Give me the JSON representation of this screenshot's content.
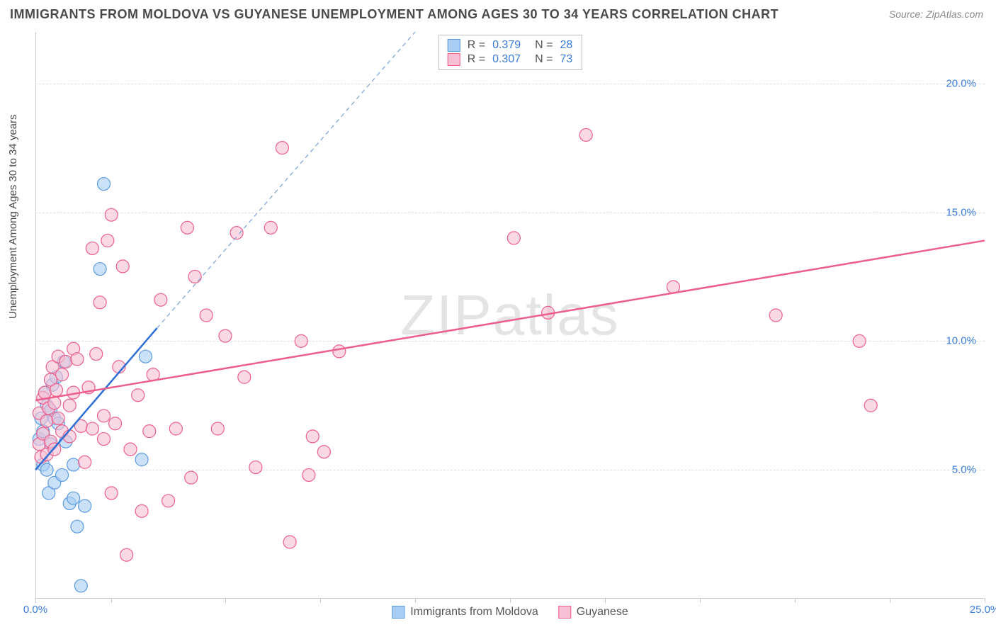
{
  "title": "IMMIGRANTS FROM MOLDOVA VS GUYANESE UNEMPLOYMENT AMONG AGES 30 TO 34 YEARS CORRELATION CHART",
  "source": "Source: ZipAtlas.com",
  "ylabel": "Unemployment Among Ages 30 to 34 years",
  "watermark": "ZIPatlas",
  "chart": {
    "type": "scatter",
    "background_color": "#ffffff",
    "grid_color": "#dcdcdc",
    "axis_color": "#cccccc",
    "tick_label_color": "#3b7dd8",
    "xlim": [
      0,
      25
    ],
    "ylim": [
      0,
      22
    ],
    "xticks": [
      0,
      2,
      5,
      7.5,
      10,
      12.5,
      15,
      17.5,
      20,
      22.5,
      25
    ],
    "xtick_labels": {
      "0": "0.0%",
      "25": "25.0%"
    },
    "yticks": [
      5,
      10,
      15,
      20
    ],
    "ytick_labels": {
      "5": "5.0%",
      "10": "10.0%",
      "15": "15.0%",
      "20": "20.0%"
    },
    "marker_radius": 9,
    "marker_stroke_width": 1.2,
    "marker_fill_opacity": 0.25,
    "trend_line_width": 2.5,
    "series": [
      {
        "id": "moldova",
        "label": "Immigrants from Moldova",
        "color_stroke": "#5a9be0",
        "color_fill": "#a9cdf3",
        "R": "0.379",
        "N": "28",
        "trend": {
          "x1": 0,
          "y1": 5.0,
          "x2": 3.2,
          "y2": 10.5,
          "dash_ext_x2": 10.0,
          "dash_ext_y2": 22.0
        },
        "points": [
          [
            0.1,
            6.2
          ],
          [
            0.15,
            7.0
          ],
          [
            0.2,
            5.2
          ],
          [
            0.2,
            6.5
          ],
          [
            0.25,
            8.0
          ],
          [
            0.3,
            7.5
          ],
          [
            0.3,
            5.0
          ],
          [
            0.35,
            4.1
          ],
          [
            0.4,
            7.3
          ],
          [
            0.4,
            6.0
          ],
          [
            0.45,
            8.3
          ],
          [
            0.5,
            7.0
          ],
          [
            0.5,
            4.5
          ],
          [
            0.55,
            8.6
          ],
          [
            0.6,
            6.8
          ],
          [
            0.7,
            4.8
          ],
          [
            0.75,
            9.2
          ],
          [
            0.8,
            6.1
          ],
          [
            0.9,
            3.7
          ],
          [
            1.0,
            3.9
          ],
          [
            1.0,
            5.2
          ],
          [
            1.1,
            2.8
          ],
          [
            1.2,
            0.5
          ],
          [
            1.3,
            3.6
          ],
          [
            1.7,
            12.8
          ],
          [
            1.8,
            16.1
          ],
          [
            2.8,
            5.4
          ],
          [
            2.9,
            9.4
          ]
        ]
      },
      {
        "id": "guyanese",
        "label": "Guyanese",
        "color_stroke": "#ec5f8c",
        "color_fill": "#f7bfd3",
        "R": "0.307",
        "N": "73",
        "trend": {
          "x1": 0,
          "y1": 7.7,
          "x2": 25,
          "y2": 13.9
        },
        "points": [
          [
            0.1,
            6.0
          ],
          [
            0.1,
            7.2
          ],
          [
            0.15,
            5.5
          ],
          [
            0.2,
            6.4
          ],
          [
            0.2,
            7.8
          ],
          [
            0.25,
            8.0
          ],
          [
            0.3,
            5.6
          ],
          [
            0.3,
            6.9
          ],
          [
            0.35,
            7.4
          ],
          [
            0.4,
            8.5
          ],
          [
            0.4,
            6.1
          ],
          [
            0.45,
            9.0
          ],
          [
            0.5,
            7.6
          ],
          [
            0.5,
            5.8
          ],
          [
            0.55,
            8.1
          ],
          [
            0.6,
            7.0
          ],
          [
            0.6,
            9.4
          ],
          [
            0.7,
            6.5
          ],
          [
            0.7,
            8.7
          ],
          [
            0.8,
            9.2
          ],
          [
            0.9,
            7.5
          ],
          [
            0.9,
            6.3
          ],
          [
            1.0,
            9.7
          ],
          [
            1.0,
            8.0
          ],
          [
            1.1,
            9.3
          ],
          [
            1.2,
            6.7
          ],
          [
            1.3,
            5.3
          ],
          [
            1.4,
            8.2
          ],
          [
            1.5,
            13.6
          ],
          [
            1.5,
            6.6
          ],
          [
            1.6,
            9.5
          ],
          [
            1.7,
            11.5
          ],
          [
            1.8,
            6.2
          ],
          [
            1.8,
            7.1
          ],
          [
            1.9,
            13.9
          ],
          [
            2.0,
            4.1
          ],
          [
            2.0,
            14.9
          ],
          [
            2.1,
            6.8
          ],
          [
            2.2,
            9.0
          ],
          [
            2.3,
            12.9
          ],
          [
            2.4,
            1.7
          ],
          [
            2.5,
            5.8
          ],
          [
            2.7,
            7.9
          ],
          [
            2.8,
            3.4
          ],
          [
            3.0,
            6.5
          ],
          [
            3.1,
            8.7
          ],
          [
            3.3,
            11.6
          ],
          [
            3.5,
            3.8
          ],
          [
            3.7,
            6.6
          ],
          [
            4.0,
            14.4
          ],
          [
            4.1,
            4.7
          ],
          [
            4.2,
            12.5
          ],
          [
            4.5,
            11.0
          ],
          [
            4.8,
            6.6
          ],
          [
            5.0,
            10.2
          ],
          [
            5.3,
            14.2
          ],
          [
            5.5,
            8.6
          ],
          [
            5.8,
            5.1
          ],
          [
            6.2,
            14.4
          ],
          [
            6.5,
            17.5
          ],
          [
            6.7,
            2.2
          ],
          [
            7.0,
            10.0
          ],
          [
            7.2,
            4.8
          ],
          [
            7.3,
            6.3
          ],
          [
            7.6,
            5.7
          ],
          [
            8.0,
            9.6
          ],
          [
            12.6,
            14.0
          ],
          [
            13.5,
            11.1
          ],
          [
            16.8,
            12.1
          ],
          [
            19.5,
            11.0
          ],
          [
            21.7,
            10.0
          ],
          [
            22.0,
            7.5
          ],
          [
            14.5,
            18.0
          ]
        ]
      }
    ],
    "legend_top": {
      "border_color": "#bfbfbf",
      "rows": [
        {
          "series": "moldova",
          "R": "0.379",
          "N": "28"
        },
        {
          "series": "guyanese",
          "R": "0.307",
          "N": "73"
        }
      ]
    }
  }
}
